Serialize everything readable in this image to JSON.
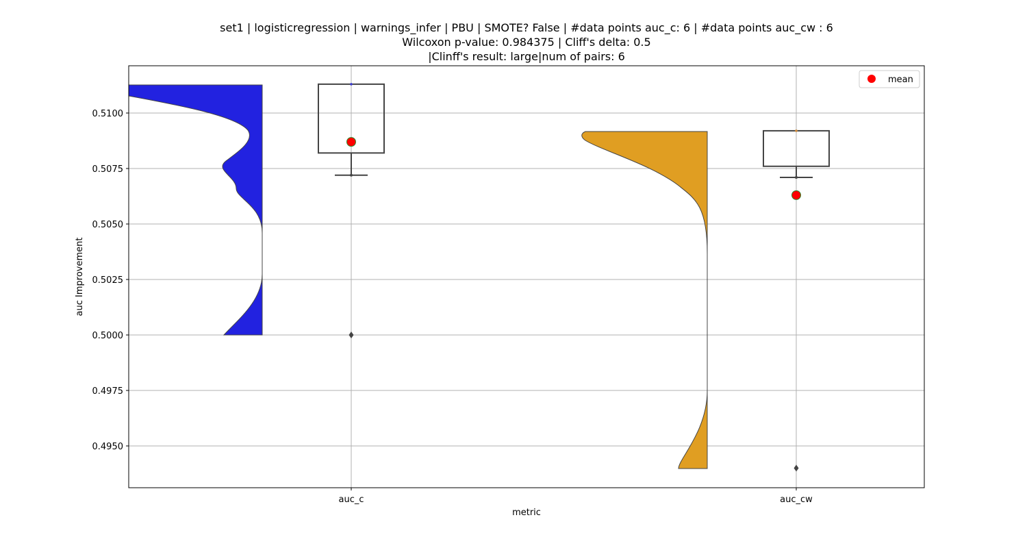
{
  "title": {
    "line1": "set1 | logisticregression | warnings_infer | PBU | SMOTE? False | #data points auc_c: 6 | #data points auc_cw : 6",
    "line2": "Wilcoxon p-value: 0.984375 | Cliff's delta: 0.5",
    "line3": "|Clinff's result: large|num of pairs: 6"
  },
  "chart_data": {
    "type": "raincloud (half-violin + box plot + mean marker)",
    "xlabel": "metric",
    "ylabel": "auc Improvement",
    "categories": [
      "auc_c",
      "auc_cw"
    ],
    "yticks": [
      0.495,
      0.4975,
      0.5,
      0.5025,
      0.505,
      0.5075,
      0.51
    ],
    "ytick_labels": [
      "0.4950",
      "0.4975",
      "0.5000",
      "0.5025",
      "0.5050",
      "0.5075",
      "0.5100"
    ],
    "ylim": [
      0.4931,
      0.5121
    ],
    "grid": true,
    "legend": {
      "position": "top-right",
      "entries": [
        {
          "label": "mean",
          "color": "#ff0000"
        }
      ]
    },
    "series": [
      {
        "category": "auc_c",
        "violin_color": "#2222e0",
        "violin_range": [
          0.5,
          0.5113
        ],
        "box": {
          "q1": 0.5082,
          "median": 0.5113,
          "q3": 0.5113,
          "whisker_low": 0.5072,
          "whisker_high": 0.5113
        },
        "outliers": [
          0.5
        ],
        "mean": 0.5087
      },
      {
        "category": "auc_cw",
        "violin_color": "#e09e22",
        "violin_range": [
          0.494,
          0.5092
        ],
        "box": {
          "q1": 0.5076,
          "median": 0.5092,
          "q3": 0.5092,
          "whisker_low": 0.5071,
          "whisker_high": 0.5092
        },
        "outliers": [
          0.494
        ],
        "mean": 0.5063
      }
    ],
    "mean_marker_color": "#ff0000",
    "mean_marker_edge": "#2e8b2e"
  }
}
